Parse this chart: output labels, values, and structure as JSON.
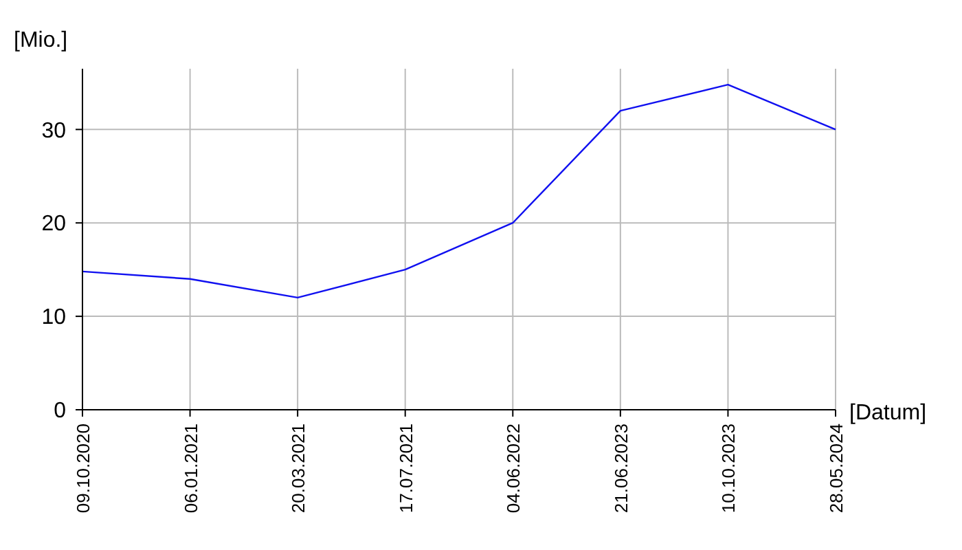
{
  "chart_data": {
    "type": "line",
    "xlabel": "[Datum]",
    "ylabel": "[Mio.]",
    "categories": [
      "09.10.2020",
      "06.01.2021",
      "20.03.2021",
      "17.07.2021",
      "04.06.2022",
      "21.06.2023",
      "10.10.2023",
      "28.05.2024"
    ],
    "series": [
      {
        "color": "#1010f0",
        "values": [
          14.8,
          14,
          12,
          15,
          20,
          32,
          34.8,
          30
        ]
      }
    ],
    "ylim": [
      0,
      36.5
    ],
    "yticks": [
      0,
      10,
      20,
      30
    ],
    "grid": true,
    "line_style": "solid"
  }
}
